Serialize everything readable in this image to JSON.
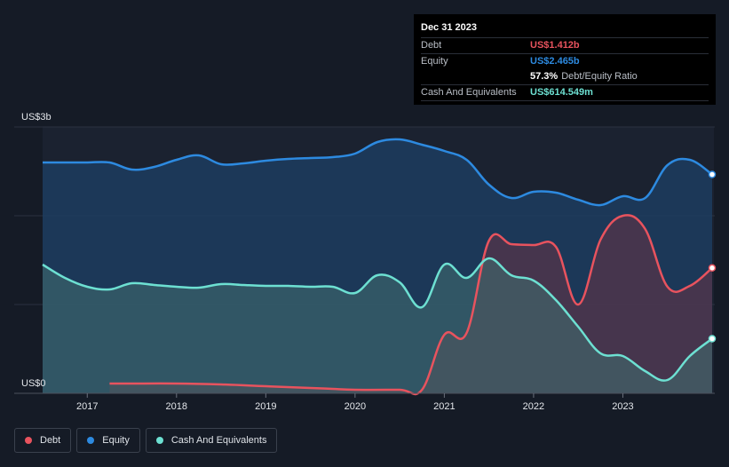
{
  "chart_data": {
    "type": "area",
    "y_top_label": "US$3b",
    "y_bottom_label": "US$0",
    "ylim": [
      0,
      3.0
    ],
    "xlim": [
      2016.5,
      2024.02
    ],
    "x_tick_labels": [
      "2017",
      "2018",
      "2019",
      "2020",
      "2021",
      "2022",
      "2023"
    ],
    "x_ticks": [
      2017,
      2018,
      2019,
      2020,
      2021,
      2022,
      2023
    ],
    "grid": "horizontal",
    "legend_placement": "bottom-left",
    "series": [
      {
        "name": "Equity",
        "color": "#2d8ae0",
        "points": [
          [
            2016.5,
            2.6
          ],
          [
            2016.75,
            2.6
          ],
          [
            2017.0,
            2.6
          ],
          [
            2017.25,
            2.6
          ],
          [
            2017.5,
            2.52
          ],
          [
            2017.75,
            2.55
          ],
          [
            2018.0,
            2.63
          ],
          [
            2018.25,
            2.68
          ],
          [
            2018.5,
            2.58
          ],
          [
            2018.75,
            2.59
          ],
          [
            2019.0,
            2.62
          ],
          [
            2019.25,
            2.64
          ],
          [
            2019.5,
            2.65
          ],
          [
            2019.75,
            2.66
          ],
          [
            2020.0,
            2.7
          ],
          [
            2020.25,
            2.83
          ],
          [
            2020.5,
            2.86
          ],
          [
            2020.75,
            2.8
          ],
          [
            2021.0,
            2.73
          ],
          [
            2021.25,
            2.63
          ],
          [
            2021.5,
            2.35
          ],
          [
            2021.75,
            2.2
          ],
          [
            2022.0,
            2.27
          ],
          [
            2022.25,
            2.26
          ],
          [
            2022.5,
            2.18
          ],
          [
            2022.75,
            2.12
          ],
          [
            2023.0,
            2.22
          ],
          [
            2023.25,
            2.2
          ],
          [
            2023.5,
            2.57
          ],
          [
            2023.75,
            2.63
          ],
          [
            2024.0,
            2.465
          ]
        ]
      },
      {
        "name": "Debt",
        "color": "#e8535e",
        "points": [
          [
            2017.25,
            0.11
          ],
          [
            2017.5,
            0.11
          ],
          [
            2018.0,
            0.11
          ],
          [
            2018.5,
            0.1
          ],
          [
            2019.0,
            0.08
          ],
          [
            2019.5,
            0.06
          ],
          [
            2019.75,
            0.05
          ],
          [
            2020.0,
            0.04
          ],
          [
            2020.5,
            0.04
          ],
          [
            2020.75,
            0.04
          ],
          [
            2021.0,
            0.66
          ],
          [
            2021.25,
            0.68
          ],
          [
            2021.5,
            1.72
          ],
          [
            2021.75,
            1.68
          ],
          [
            2022.0,
            1.67
          ],
          [
            2022.25,
            1.65
          ],
          [
            2022.5,
            1.0
          ],
          [
            2022.75,
            1.73
          ],
          [
            2023.0,
            2.0
          ],
          [
            2023.25,
            1.85
          ],
          [
            2023.5,
            1.2
          ],
          [
            2023.75,
            1.21
          ],
          [
            2024.0,
            1.412
          ]
        ]
      },
      {
        "name": "Cash And Equivalents",
        "color": "#6de0d2",
        "points": [
          [
            2016.5,
            1.45
          ],
          [
            2016.75,
            1.3
          ],
          [
            2017.0,
            1.2
          ],
          [
            2017.25,
            1.17
          ],
          [
            2017.5,
            1.24
          ],
          [
            2017.75,
            1.22
          ],
          [
            2018.0,
            1.2
          ],
          [
            2018.25,
            1.19
          ],
          [
            2018.5,
            1.23
          ],
          [
            2018.75,
            1.22
          ],
          [
            2019.0,
            1.21
          ],
          [
            2019.25,
            1.21
          ],
          [
            2019.5,
            1.2
          ],
          [
            2019.75,
            1.2
          ],
          [
            2020.0,
            1.13
          ],
          [
            2020.25,
            1.33
          ],
          [
            2020.5,
            1.25
          ],
          [
            2020.75,
            0.97
          ],
          [
            2021.0,
            1.45
          ],
          [
            2021.25,
            1.3
          ],
          [
            2021.5,
            1.52
          ],
          [
            2021.75,
            1.33
          ],
          [
            2022.0,
            1.27
          ],
          [
            2022.25,
            1.05
          ],
          [
            2022.5,
            0.75
          ],
          [
            2022.75,
            0.45
          ],
          [
            2023.0,
            0.42
          ],
          [
            2023.25,
            0.25
          ],
          [
            2023.5,
            0.15
          ],
          [
            2023.75,
            0.42
          ],
          [
            2024.0,
            0.615
          ]
        ]
      }
    ]
  },
  "tooltip": {
    "date": "Dec 31 2023",
    "debt_label": "Debt",
    "debt_value": "US$1.412b",
    "equity_label": "Equity",
    "equity_value": "US$2.465b",
    "ratio_value": "57.3%",
    "ratio_label": "Debt/Equity Ratio",
    "cash_label": "Cash And Equivalents",
    "cash_value": "US$614.549m"
  },
  "legend": [
    {
      "label": "Debt",
      "color": "#e8535e"
    },
    {
      "label": "Equity",
      "color": "#2d8ae0"
    },
    {
      "label": "Cash And Equivalents",
      "color": "#6de0d2"
    }
  ]
}
